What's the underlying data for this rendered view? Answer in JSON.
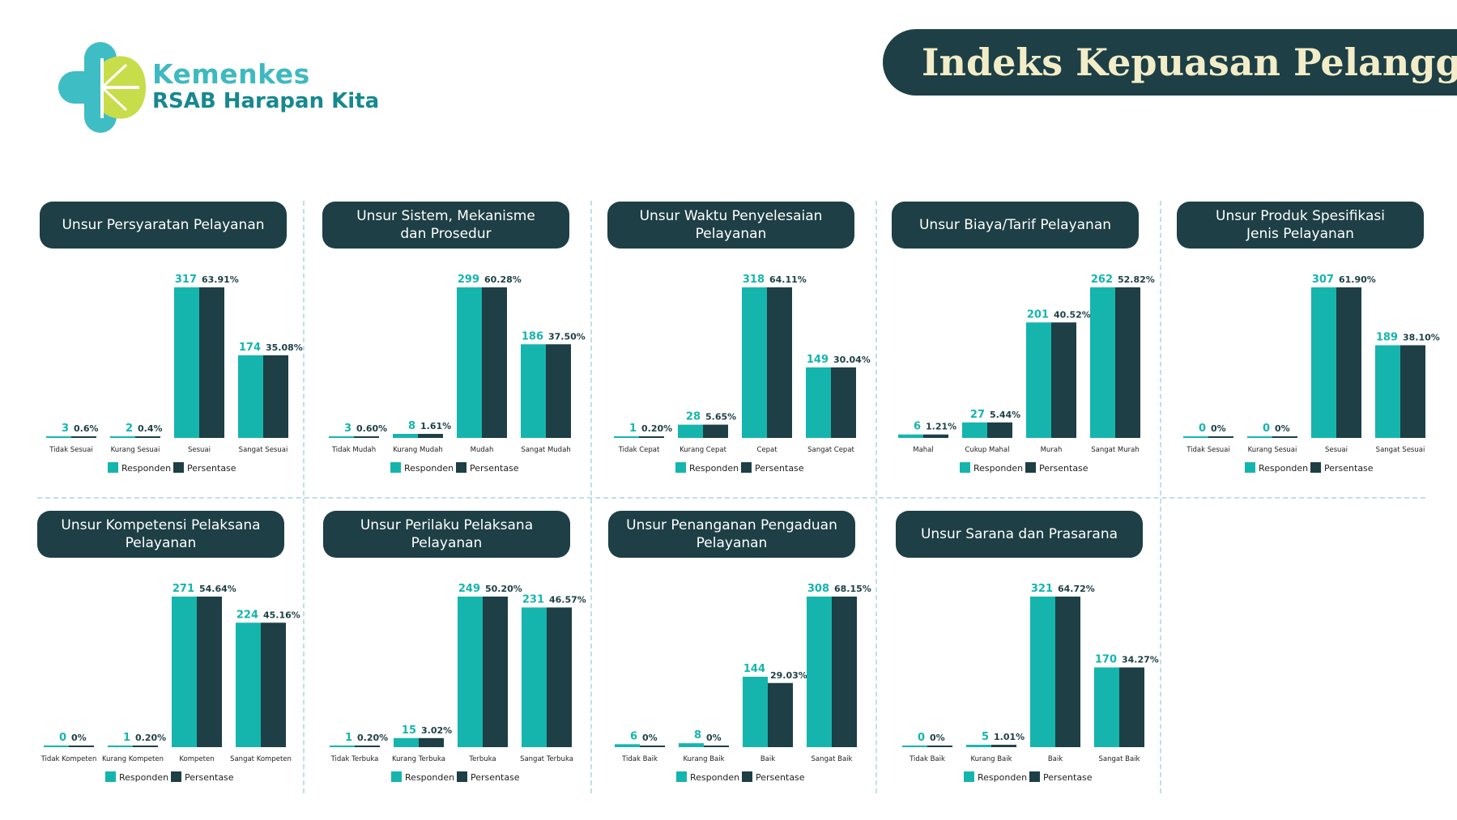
{
  "brand": {
    "line1": "Kemenkes",
    "line2": "RSAB Harapan Kita"
  },
  "page_title": "Indeks Kepuasan Pelanggan",
  "colors": {
    "responden": "#15b5ae",
    "persentase": "#1d3f45",
    "header_bg": "#1d3f45",
    "title_text": "#f2ecc8",
    "logo_teal": "#3fbdc4",
    "logo_lime": "#c8dd4a"
  },
  "legend": {
    "responden": "Responden",
    "persentase": "Persentase"
  },
  "chart_data": [
    {
      "type": "bar",
      "title": "Unsur Persyaratan Pelayanan",
      "categories": [
        "Tidak Sesuai",
        "Kurang Sesuai",
        "Sesuai",
        "Sangat Sesuai"
      ],
      "series": [
        {
          "name": "Responden",
          "values": [
            3,
            2,
            317,
            174
          ],
          "labels": [
            "3",
            "2",
            "317",
            "174"
          ]
        },
        {
          "name": "Persentase",
          "values": [
            0.6,
            0.4,
            63.91,
            35.08
          ],
          "labels": [
            "0.6%",
            "0.4%",
            "63.91%",
            "35.08%"
          ]
        }
      ]
    },
    {
      "type": "bar",
      "title": "Unsur Sistem, Mekanisme\ndan Prosedur",
      "categories": [
        "Tidak Mudah",
        "Kurang Mudah",
        "Mudah",
        "Sangat Mudah"
      ],
      "series": [
        {
          "name": "Responden",
          "values": [
            3,
            8,
            299,
            186
          ],
          "labels": [
            "3",
            "8",
            "299",
            "186"
          ]
        },
        {
          "name": "Persentase",
          "values": [
            0.6,
            1.61,
            60.28,
            37.5
          ],
          "labels": [
            "0.60%",
            "1.61%",
            "60.28%",
            "37.50%"
          ]
        }
      ]
    },
    {
      "type": "bar",
      "title": "Unsur Waktu Penyelesaian\nPelayanan",
      "categories": [
        "Tidak Cepat",
        "Kurang Cepat",
        "Cepat",
        "Sangat Cepat"
      ],
      "series": [
        {
          "name": "Responden",
          "values": [
            1,
            28,
            318,
            149
          ],
          "labels": [
            "1",
            "28",
            "318",
            "149"
          ]
        },
        {
          "name": "Persentase",
          "values": [
            0.2,
            5.65,
            64.11,
            30.04
          ],
          "labels": [
            "0.20%",
            "5.65%",
            "64.11%",
            "30.04%"
          ]
        }
      ]
    },
    {
      "type": "bar",
      "title": "Unsur Biaya/Tarif Pelayanan",
      "categories": [
        "Mahal",
        "Cukup Mahal",
        "Murah",
        "Sangat Murah"
      ],
      "series": [
        {
          "name": "Responden",
          "values": [
            6,
            27,
            201,
            262
          ],
          "labels": [
            "6",
            "27",
            "201",
            "262"
          ]
        },
        {
          "name": "Persentase",
          "values": [
            1.21,
            5.44,
            40.52,
            52.82
          ],
          "labels": [
            "1.21%",
            "5.44%",
            "40.52%",
            "52.82%"
          ]
        }
      ]
    },
    {
      "type": "bar",
      "title": "Unsur Produk Spesifikasi\nJenis Pelayanan",
      "categories": [
        "Tidak Sesuai",
        "Kurang Sesuai",
        "Sesuai",
        "Sangat Sesuai"
      ],
      "series": [
        {
          "name": "Responden",
          "values": [
            0,
            0,
            307,
            189
          ],
          "labels": [
            "0",
            "0",
            "307",
            "189"
          ]
        },
        {
          "name": "Persentase",
          "values": [
            0,
            0,
            61.9,
            38.1
          ],
          "labels": [
            "0%",
            "0%",
            "61.90%",
            "38.10%"
          ]
        }
      ]
    },
    {
      "type": "bar",
      "title": "Unsur Kompetensi Pelaksana\nPelayanan",
      "categories": [
        "Tidak Kompeten",
        "Kurang Kompeten",
        "Kompeten",
        "Sangat Kompeten"
      ],
      "series": [
        {
          "name": "Responden",
          "values": [
            0,
            1,
            271,
            224
          ],
          "labels": [
            "0",
            "1",
            "271",
            "224"
          ]
        },
        {
          "name": "Persentase",
          "values": [
            0,
            0.2,
            54.64,
            45.16
          ],
          "labels": [
            "0%",
            "0.20%",
            "54.64%",
            "45.16%"
          ]
        }
      ]
    },
    {
      "type": "bar",
      "title": "Unsur Perilaku Pelaksana\nPelayanan",
      "categories": [
        "Tidak Terbuka",
        "Kurang Terbuka",
        "Terbuka",
        "Sangat Terbuka"
      ],
      "series": [
        {
          "name": "Responden",
          "values": [
            1,
            15,
            249,
            231
          ],
          "labels": [
            "1",
            "15",
            "249",
            "231"
          ]
        },
        {
          "name": "Persentase",
          "values": [
            0.2,
            3.02,
            50.2,
            46.57
          ],
          "labels": [
            "0.20%",
            "3.02%",
            "50.20%",
            "46.57%"
          ]
        }
      ]
    },
    {
      "type": "bar",
      "title": "Unsur Penanganan Pengaduan\nPelayanan",
      "categories": [
        "Tidak Baik",
        "Kurang Baik",
        "Baik",
        "Sangat Baik"
      ],
      "series": [
        {
          "name": "Responden",
          "values": [
            6,
            8,
            144,
            308
          ],
          "labels": [
            "6",
            "8",
            "144",
            "308"
          ]
        },
        {
          "name": "Persentase",
          "values": [
            0,
            0,
            29.03,
            68.15
          ],
          "labels": [
            "0%",
            "0%",
            "29.03%",
            "68.15%"
          ]
        }
      ]
    },
    {
      "type": "bar",
      "title": "Unsur Sarana dan Prasarana",
      "categories": [
        "Tidak Baik",
        "Kurang Baik",
        "Baik",
        "Sangat Baik"
      ],
      "series": [
        {
          "name": "Responden",
          "values": [
            0,
            5,
            321,
            170
          ],
          "labels": [
            "0",
            "5",
            "321",
            "170"
          ]
        },
        {
          "name": "Persentase",
          "values": [
            0,
            1.01,
            64.72,
            34.27
          ],
          "labels": [
            "0%",
            "1.01%",
            "64.72%",
            "34.27%"
          ]
        }
      ]
    }
  ]
}
